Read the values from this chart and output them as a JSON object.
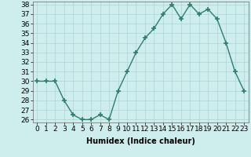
{
  "x": [
    0,
    1,
    2,
    3,
    4,
    5,
    6,
    7,
    8,
    9,
    10,
    11,
    12,
    13,
    14,
    15,
    16,
    17,
    18,
    19,
    20,
    21,
    22,
    23
  ],
  "y": [
    30,
    30,
    30,
    28,
    26.5,
    26,
    26,
    26.5,
    26,
    29,
    31,
    33,
    34.5,
    35.5,
    37,
    38,
    36.5,
    38,
    37,
    37.5,
    36.5,
    34,
    31,
    29
  ],
  "xlabel": "Humidex (Indice chaleur)",
  "ylim": [
    26,
    38
  ],
  "xlim": [
    -0.5,
    23.5
  ],
  "yticks": [
    26,
    27,
    28,
    29,
    30,
    31,
    32,
    33,
    34,
    35,
    36,
    37,
    38
  ],
  "xticks": [
    0,
    1,
    2,
    3,
    4,
    5,
    6,
    7,
    8,
    9,
    10,
    11,
    12,
    13,
    14,
    15,
    16,
    17,
    18,
    19,
    20,
    21,
    22,
    23
  ],
  "line_color": "#2e7d6e",
  "marker": "+",
  "marker_size": 4,
  "linewidth": 1.0,
  "bg_color": "#ceeeed",
  "grid_color": "#aed4d2",
  "label_fontsize": 7,
  "tick_fontsize": 6.5
}
